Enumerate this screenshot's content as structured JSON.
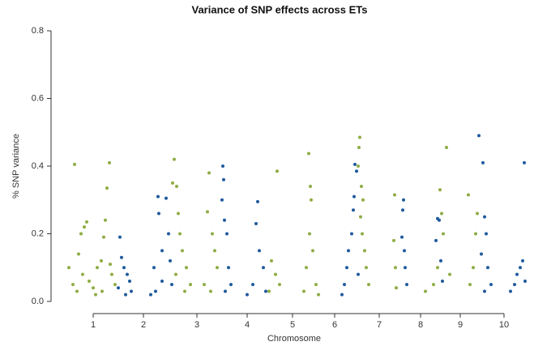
{
  "chart_data": {
    "type": "scatter",
    "title": "Variance of SNP effects across ETs",
    "x_label": "Chromosome",
    "y_label": "% SNP variance",
    "xlim": [
      0,
      580
    ],
    "ylim": [
      0,
      0.8
    ],
    "xticks": [
      {
        "value": 40,
        "label": "1"
      },
      {
        "value": 102,
        "label": "2"
      },
      {
        "value": 168,
        "label": "3"
      },
      {
        "value": 230,
        "label": "4"
      },
      {
        "value": 286,
        "label": "5"
      },
      {
        "value": 338,
        "label": "6"
      },
      {
        "value": 393,
        "label": "7"
      },
      {
        "value": 444,
        "label": "8"
      },
      {
        "value": 493,
        "label": "9"
      },
      {
        "value": 547,
        "label": "10"
      }
    ],
    "yticks": [
      {
        "value": 0,
        "label": "0.0"
      },
      0.2,
      0.4,
      0.6,
      0.8
    ],
    "grid": false,
    "series": [
      {
        "color": "#8fac44",
        "x": [
          17,
          22,
          25,
          29,
          32,
          10,
          15,
          20,
          27,
          35,
          40,
          45,
          50,
          55,
          57,
          60,
          53,
          63,
          67,
          43,
          51,
          61,
          140,
          138,
          143,
          145,
          147,
          150,
          155,
          160,
          142,
          153,
          181,
          183,
          187,
          190,
          193,
          177,
          185,
          267,
          260,
          265,
          270,
          257,
          306,
          308,
          309,
          307,
          311,
          303,
          315,
          300,
          318,
          369,
          368,
          367,
          371,
          373,
          370,
          372,
          375,
          377,
          380,
          412,
          411,
          413,
          414,
          476,
          468,
          470,
          472,
          465,
          460,
          450,
          480,
          503,
          514,
          512,
          509,
          505
        ],
        "values": [
          0.405,
          0.14,
          0.2,
          0.22,
          0.235,
          0.1,
          0.05,
          0.03,
          0.08,
          0.06,
          0.04,
          0.1,
          0.12,
          0.24,
          0.335,
          0.41,
          0.19,
          0.08,
          0.05,
          0.02,
          0.03,
          0.11,
          0.42,
          0.35,
          0.34,
          0.26,
          0.2,
          0.15,
          0.1,
          0.05,
          0.08,
          0.03,
          0.265,
          0.38,
          0.2,
          0.15,
          0.1,
          0.05,
          0.03,
          0.385,
          0.12,
          0.08,
          0.05,
          0.03,
          0.437,
          0.34,
          0.3,
          0.2,
          0.15,
          0.1,
          0.05,
          0.03,
          0.02,
          0.485,
          0.455,
          0.4,
          0.34,
          0.3,
          0.25,
          0.2,
          0.15,
          0.1,
          0.05,
          0.315,
          0.18,
          0.1,
          0.04,
          0.455,
          0.33,
          0.26,
          0.2,
          0.1,
          0.05,
          0.03,
          0.08,
          0.315,
          0.26,
          0.2,
          0.1,
          0.05
        ]
      },
      {
        "color": "#1f5a9e",
        "x": [
          73,
          75,
          78,
          82,
          85,
          71,
          80,
          87,
          120,
          121,
          130,
          133,
          115,
          125,
          135,
          125,
          117,
          137,
          111,
          200,
          201,
          199,
          202,
          205,
          207,
          210,
          203,
          243,
          241,
          245,
          250,
          237,
          230,
          253,
          363,
          365,
          362,
          361,
          359,
          355,
          353,
          350,
          367,
          347,
          423,
          422,
          421,
          424,
          425,
          427,
          465,
          467,
          463,
          469,
          471,
          516,
          521,
          523,
          525,
          519,
          527,
          531,
          523,
          572,
          570,
          567,
          563,
          560,
          555,
          573
        ],
        "values": [
          0.19,
          0.13,
          0.1,
          0.08,
          0.06,
          0.04,
          0.02,
          0.03,
          0.31,
          0.26,
          0.305,
          0.2,
          0.1,
          0.15,
          0.12,
          0.06,
          0.03,
          0.05,
          0.02,
          0.4,
          0.36,
          0.3,
          0.24,
          0.2,
          0.1,
          0.05,
          0.03,
          0.295,
          0.23,
          0.15,
          0.1,
          0.05,
          0.02,
          0.03,
          0.405,
          0.385,
          0.31,
          0.27,
          0.2,
          0.15,
          0.1,
          0.05,
          0.08,
          0.02,
          0.3,
          0.27,
          0.19,
          0.15,
          0.1,
          0.05,
          0.245,
          0.24,
          0.18,
          0.12,
          0.06,
          0.49,
          0.41,
          0.25,
          0.2,
          0.14,
          0.1,
          0.05,
          0.03,
          0.41,
          0.12,
          0.1,
          0.08,
          0.05,
          0.03,
          0.06
        ]
      }
    ]
  }
}
